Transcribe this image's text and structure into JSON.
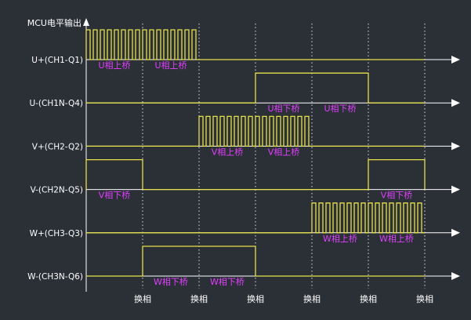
{
  "title": "MCU电平输出",
  "commutation_label": "换相",
  "commutation_count": 6,
  "colors": {
    "background": "#2b2f36",
    "axis": "#ffffff",
    "waveform": "#e6e04a",
    "segment_label": "#e040ff",
    "divider": "#ffffff"
  },
  "channels": [
    {
      "label": "U+(CH1-Q1)",
      "pattern": [
        "pwm",
        "pwm",
        "low",
        "low",
        "low",
        "low"
      ],
      "segment_labels": [
        {
          "text": "U相上桥",
          "step": 0
        },
        {
          "text": "U相上桥",
          "step": 1
        }
      ]
    },
    {
      "label": "U-(CH1N-Q4)",
      "pattern": [
        "low",
        "low",
        "low",
        "high",
        "high",
        "low"
      ],
      "segment_labels": [
        {
          "text": "U相下桥",
          "step": 3
        },
        {
          "text": "U相下桥",
          "step": 4
        }
      ]
    },
    {
      "label": "V+(CH2-Q2)",
      "pattern": [
        "low",
        "low",
        "pwm",
        "pwm",
        "low",
        "low"
      ],
      "segment_labels": [
        {
          "text": "V相上桥",
          "step": 2
        },
        {
          "text": "V相上桥",
          "step": 3
        }
      ]
    },
    {
      "label": "V-(CH2N-Q5)",
      "pattern": [
        "high",
        "low",
        "low",
        "low",
        "low",
        "high"
      ],
      "segment_labels": [
        {
          "text": "V相下桥",
          "step": 0
        },
        {
          "text": "V相下桥",
          "step": 5
        }
      ]
    },
    {
      "label": "W+(CH3-Q3)",
      "pattern": [
        "low",
        "low",
        "low",
        "low",
        "pwm",
        "pwm"
      ],
      "segment_labels": [
        {
          "text": "W相上桥",
          "step": 4
        },
        {
          "text": "W相上桥",
          "step": 5
        }
      ]
    },
    {
      "label": "W-(CH3N-Q6)",
      "pattern": [
        "low",
        "high",
        "high",
        "low",
        "low",
        "low"
      ],
      "segment_labels": [
        {
          "text": "W相下桥",
          "step": 1
        },
        {
          "text": "W相下桥",
          "step": 2
        }
      ]
    }
  ]
}
